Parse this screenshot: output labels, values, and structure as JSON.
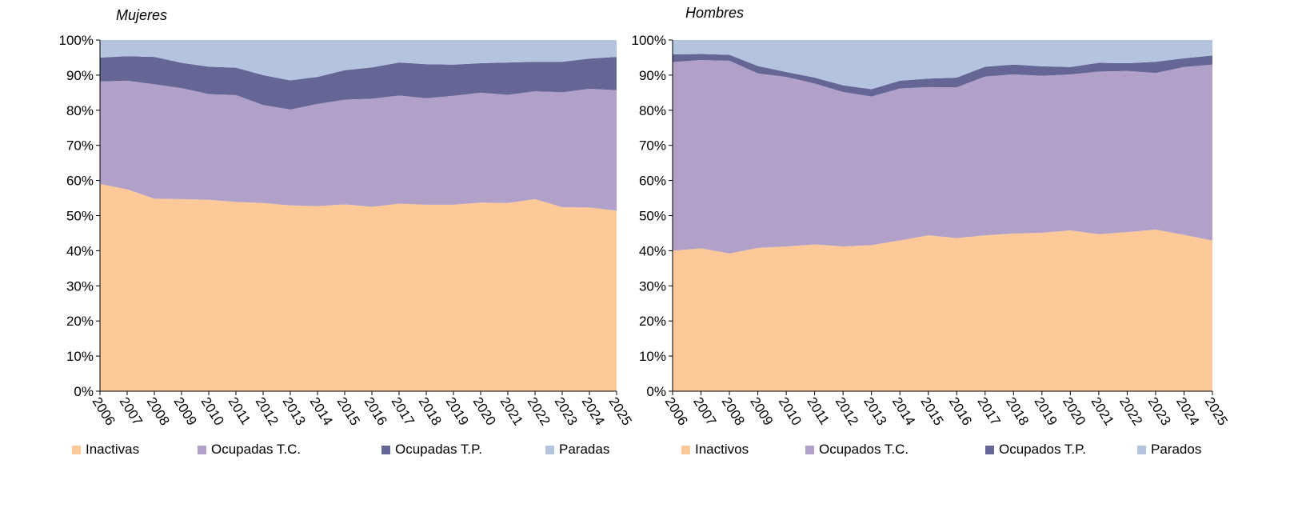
{
  "chart_data": [
    {
      "type": "area",
      "stacked": "percent",
      "title": "Mujeres",
      "xlabel": "",
      "ylabel": "",
      "ylim": [
        0,
        100
      ],
      "y_ticks": [
        "0%",
        "10%",
        "20%",
        "30%",
        "40%",
        "50%",
        "60%",
        "70%",
        "80%",
        "90%",
        "100%"
      ],
      "categories": [
        "2006",
        "2007",
        "2008",
        "2009",
        "2010",
        "2011",
        "2012",
        "2013",
        "2014",
        "2015",
        "2016",
        "2017",
        "2018",
        "2019",
        "2020",
        "2021",
        "2022",
        "2023",
        "2024",
        "2025"
      ],
      "grid": false,
      "legend": "bottom",
      "series": [
        {
          "name": "Inactivas",
          "color": "#FDC998",
          "values": [
            59.0,
            57.5,
            54.8,
            54.7,
            54.5,
            53.9,
            53.6,
            52.9,
            52.7,
            53.2,
            52.5,
            53.4,
            53.1,
            53.1,
            53.7,
            53.6,
            54.7,
            52.4,
            52.3,
            51.4
          ]
        },
        {
          "name": "Ocupadas T.C.",
          "color": "#B1A0C7",
          "values": [
            29.2,
            30.9,
            32.6,
            31.6,
            30.1,
            30.4,
            27.9,
            27.3,
            29.1,
            29.8,
            30.8,
            30.8,
            30.3,
            31.0,
            31.3,
            30.8,
            30.7,
            32.7,
            33.8,
            34.3
          ]
        },
        {
          "name": "Ocupadas T.P.",
          "color": "#656596",
          "values": [
            6.8,
            7.0,
            7.8,
            7.2,
            7.8,
            7.8,
            8.5,
            8.3,
            7.7,
            8.4,
            8.9,
            9.4,
            9.7,
            8.9,
            8.4,
            9.2,
            8.4,
            8.7,
            8.6,
            9.5
          ]
        },
        {
          "name": "Paradas",
          "color": "#B4C4DF",
          "values": [
            5.0,
            4.6,
            4.8,
            6.5,
            7.6,
            7.9,
            10.0,
            11.5,
            10.5,
            8.6,
            7.8,
            6.4,
            6.9,
            7.0,
            6.6,
            6.4,
            6.2,
            6.2,
            5.3,
            4.8
          ]
        }
      ]
    },
    {
      "type": "area",
      "stacked": "percent",
      "title": "Hombres",
      "xlabel": "",
      "ylabel": "",
      "ylim": [
        0,
        100
      ],
      "y_ticks": [
        "0%",
        "10%",
        "20%",
        "30%",
        "40%",
        "50%",
        "60%",
        "70%",
        "80%",
        "90%",
        "100%"
      ],
      "categories": [
        "2006",
        "2007",
        "2008",
        "2009",
        "2010",
        "2011",
        "2012",
        "2013",
        "2014",
        "2015",
        "2016",
        "2017",
        "2018",
        "2019",
        "2020",
        "2021",
        "2022",
        "2023",
        "2024",
        "2025"
      ],
      "grid": false,
      "legend": "bottom",
      "series": [
        {
          "name": "Inactivos",
          "color": "#FDC998",
          "values": [
            40.0,
            40.7,
            39.2,
            40.8,
            41.2,
            41.8,
            41.2,
            41.6,
            42.9,
            44.4,
            43.6,
            44.4,
            44.9,
            45.1,
            45.8,
            44.7,
            45.3,
            46.0,
            44.5,
            42.9
          ]
        },
        {
          "name": "Ocupados T.C.",
          "color": "#B1A0C7",
          "values": [
            53.7,
            53.6,
            54.9,
            49.7,
            48.3,
            45.8,
            44.0,
            42.3,
            43.3,
            42.2,
            42.9,
            45.2,
            45.3,
            44.7,
            44.4,
            46.3,
            45.9,
            44.6,
            47.8,
            50.1
          ]
        },
        {
          "name": "Ocupados T.P.",
          "color": "#656596",
          "values": [
            2.2,
            1.7,
            1.7,
            2.1,
            1.4,
            1.7,
            1.9,
            2.1,
            2.2,
            2.4,
            2.8,
            2.8,
            2.8,
            2.7,
            2.1,
            2.5,
            2.2,
            3.2,
            2.5,
            2.6
          ]
        },
        {
          "name": "Parados",
          "color": "#B4C4DF",
          "values": [
            4.1,
            4.0,
            4.2,
            7.4,
            9.1,
            10.7,
            12.9,
            14.0,
            11.6,
            11.0,
            10.7,
            7.6,
            7.0,
            7.5,
            7.7,
            6.5,
            6.6,
            6.2,
            5.2,
            4.4
          ]
        }
      ]
    }
  ]
}
